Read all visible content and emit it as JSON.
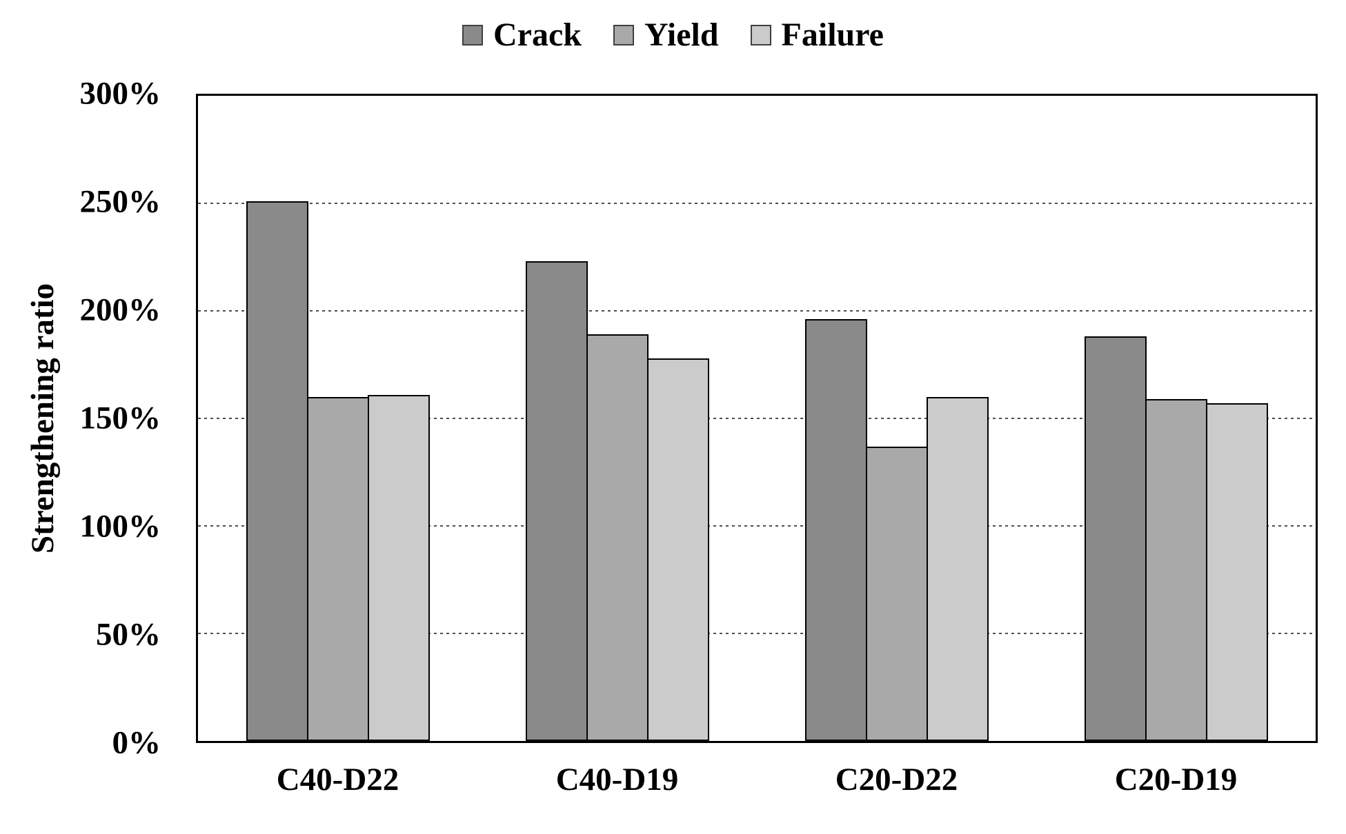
{
  "chart_data": {
    "type": "bar",
    "title": "",
    "xlabel": "",
    "ylabel": "Strengthening ratio",
    "categories": [
      "C40-D22",
      "C40-D19",
      "C20-D22",
      "C20-D19"
    ],
    "series": [
      {
        "name": "Crack",
        "color": "#8a8a8a",
        "values": [
          251,
          223,
          196,
          188
        ]
      },
      {
        "name": "Yield",
        "color": "#a9a9a9",
        "values": [
          160,
          189,
          137,
          159
        ]
      },
      {
        "name": "Failure",
        "color": "#cbcbcb",
        "values": [
          161,
          178,
          160,
          157
        ]
      }
    ],
    "values_unit": "%",
    "ylim": [
      0,
      300
    ],
    "ytick_step": 50,
    "ytick_labels": [
      "0%",
      "50%",
      "100%",
      "150%",
      "200%",
      "250%",
      "300%"
    ],
    "grid": "horizontal-dotted",
    "gridline_color": "#4d4d4d",
    "bar_border_color": "#000000",
    "legend_position": "top-center",
    "text_color": "#000000",
    "plot_border_color": "#000000"
  }
}
